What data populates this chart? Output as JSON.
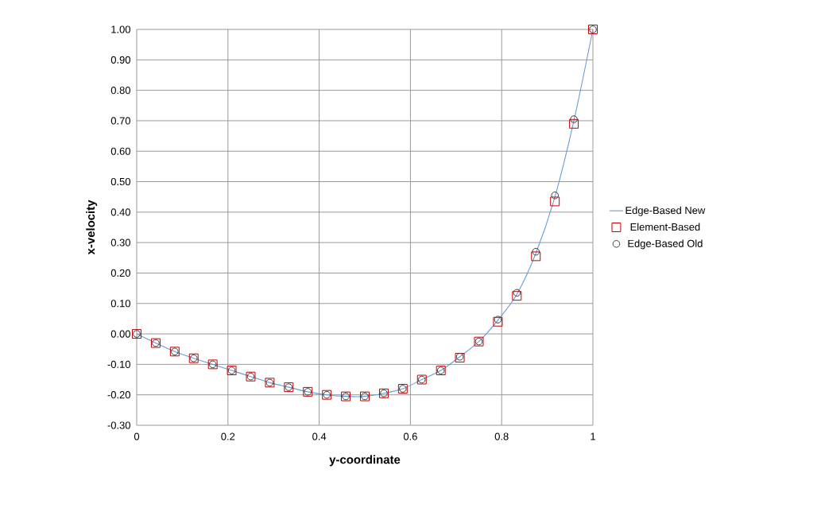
{
  "chart_data": {
    "type": "scatter",
    "xlabel": "y-coordinate",
    "ylabel": "x-velocity",
    "x": [
      0,
      0.0417,
      0.0833,
      0.125,
      0.1667,
      0.2083,
      0.25,
      0.2917,
      0.3333,
      0.375,
      0.4167,
      0.4583,
      0.5,
      0.5417,
      0.5833,
      0.625,
      0.6667,
      0.7083,
      0.75,
      0.7917,
      0.8333,
      0.875,
      0.9167,
      0.9583,
      1
    ],
    "series": [
      {
        "name": "Edge-Based New",
        "type": "line",
        "marker": "none",
        "color": "#6a9bd8",
        "values": [
          0,
          -0.03,
          -0.058,
          -0.08,
          -0.1,
          -0.12,
          -0.14,
          -0.16,
          -0.175,
          -0.19,
          -0.2,
          -0.205,
          -0.205,
          -0.195,
          -0.18,
          -0.15,
          -0.12,
          -0.075,
          -0.025,
          0.045,
          0.13,
          0.265,
          0.45,
          0.7,
          1.0
        ]
      },
      {
        "name": "Element-Based",
        "marker": "square",
        "color": "#c00000",
        "values": [
          0,
          -0.03,
          -0.058,
          -0.08,
          -0.1,
          -0.12,
          -0.14,
          -0.16,
          -0.175,
          -0.19,
          -0.2,
          -0.205,
          -0.205,
          -0.195,
          -0.18,
          -0.15,
          -0.12,
          -0.078,
          -0.025,
          0.04,
          0.125,
          0.255,
          0.435,
          0.69,
          1.0
        ]
      },
      {
        "name": "Edge-Based Old",
        "marker": "circle",
        "color": "#404040",
        "values": [
          0,
          -0.03,
          -0.058,
          -0.08,
          -0.1,
          -0.12,
          -0.14,
          -0.16,
          -0.175,
          -0.19,
          -0.2,
          -0.205,
          -0.205,
          -0.195,
          -0.18,
          -0.15,
          -0.12,
          -0.075,
          -0.025,
          0.047,
          0.135,
          0.27,
          0.455,
          0.705,
          1.0
        ]
      }
    ],
    "xlim": [
      0,
      1
    ],
    "ylim": [
      -0.3,
      1.0
    ],
    "xticks": [
      0,
      0.2,
      0.4,
      0.6,
      0.8,
      1
    ],
    "yticks": [
      {
        "value": -0.3,
        "label": "-0.30"
      },
      {
        "value": -0.2,
        "label": "-0.20"
      },
      {
        "value": -0.1,
        "label": "-0.10"
      },
      {
        "value": 0,
        "label": "0.00"
      },
      {
        "value": 0.1,
        "label": "0.10"
      },
      {
        "value": 0.2,
        "label": "0.20"
      },
      {
        "value": 0.3,
        "label": "0.30"
      },
      {
        "value": 0.4,
        "label": "0.40"
      },
      {
        "value": 0.5,
        "label": "0.50"
      },
      {
        "value": 0.6,
        "label": "0.60"
      },
      {
        "value": 0.7,
        "label": "0.70"
      },
      {
        "value": 0.8,
        "label": "0.80"
      },
      {
        "value": 0.9,
        "label": "0.90"
      },
      {
        "value": 1.0,
        "label": "1.00"
      }
    ],
    "grid": true,
    "legend": "right"
  }
}
